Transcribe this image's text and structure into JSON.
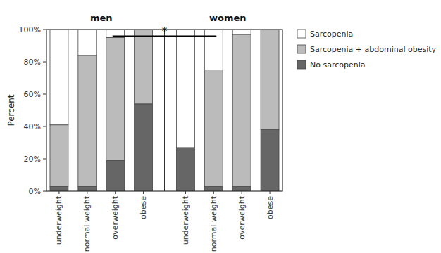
{
  "chart_data": {
    "type": "bar",
    "stacked": true,
    "categories": [
      "underweight",
      "normal weight",
      "overweight",
      "obese",
      "underweight",
      "normal weight",
      "overweight",
      "obese"
    ],
    "series": [
      {
        "name": "No sarcopenia",
        "color": "#666666",
        "values": [
          3,
          3,
          19,
          54,
          27,
          3,
          3,
          38
        ]
      },
      {
        "name": "Sarcopenia + abdominal obesity",
        "color": "#bbbbbb",
        "values": [
          38,
          81,
          76,
          46,
          0,
          72,
          94,
          62
        ]
      },
      {
        "name": "Sarcopenia",
        "color": "#ffffff",
        "values": [
          59,
          16,
          5,
          0,
          73,
          25,
          3,
          0
        ]
      }
    ],
    "y_label": "Percent",
    "ylim": [
      0,
      100
    ],
    "yticks": [
      {
        "value": 0,
        "label": "0%"
      },
      {
        "value": 20,
        "label": "20%"
      },
      {
        "value": 40,
        "label": "40%"
      },
      {
        "value": 60,
        "label": "60%"
      },
      {
        "value": 80,
        "label": "80%"
      },
      {
        "value": 100,
        "label": "100%"
      }
    ],
    "annotations": [
      "men",
      "women",
      "*"
    ],
    "grid": false,
    "legend": "right"
  }
}
